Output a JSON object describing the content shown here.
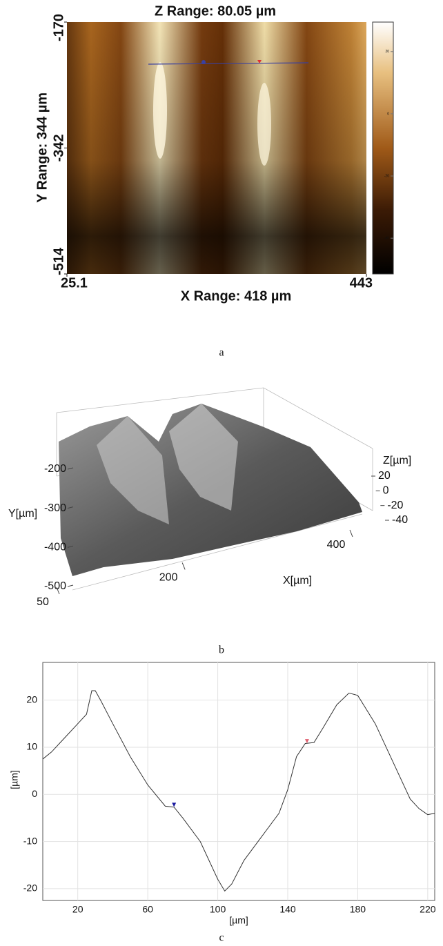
{
  "figure_labels": [
    "a",
    "b",
    "c"
  ],
  "chart_data": [
    {
      "type": "heatmap",
      "title": "Z Range: 80.05 µm",
      "xlabel": "X Range: 418 µm",
      "ylabel": "Y Range: 344 µm",
      "xlim": [
        25.1,
        443
      ],
      "xticks": [
        25.1,
        443
      ],
      "ylim": [
        -514,
        -170
      ],
      "yticks": [
        -170,
        -342,
        -514
      ],
      "zlim": [
        -51.5,
        29.5
      ],
      "zticks": [
        20,
        0,
        -20,
        -40
      ]
    },
    {
      "type": "surface3d",
      "xlabel": "X[µm]",
      "ylabel": "Y[µm]",
      "zlabel": "Z[µm]",
      "xlim": [
        50,
        400
      ],
      "xticks": [
        50,
        200,
        400
      ],
      "ylim": [
        -200,
        -500
      ],
      "yticks": [
        -200,
        -300,
        -400,
        -500
      ],
      "zlim": [
        -40,
        20
      ],
      "zticks": [
        20,
        0,
        -20,
        -40
      ]
    },
    {
      "type": "line",
      "xlabel": "[µm]",
      "ylabel": "[µm]",
      "xlim": [
        0,
        224
      ],
      "ylim": [
        -22.5,
        28
      ],
      "xticks": [
        20,
        60,
        100,
        140,
        180,
        220
      ],
      "yticks": [
        -20,
        -10,
        0,
        10,
        20
      ],
      "grid": true,
      "x": [
        0,
        5,
        10,
        15,
        20,
        25,
        28,
        30,
        33,
        40,
        50,
        60,
        70,
        75,
        80,
        90,
        100,
        104,
        108,
        115,
        125,
        135,
        140,
        145,
        150,
        155,
        160,
        168,
        175,
        180,
        190,
        200,
        210,
        215,
        220,
        224
      ],
      "series": [
        {
          "color": "#333333",
          "values": [
            7.5,
            9,
            11,
            13,
            15,
            17,
            22,
            22,
            20,
            15,
            8,
            2,
            -2.5,
            -2.7,
            -5,
            -10,
            -18,
            -20.5,
            -19,
            -14,
            -9,
            -4,
            1,
            8,
            10.8,
            11,
            14,
            19,
            21.5,
            21,
            15,
            7,
            -1,
            -3,
            -4.3,
            -4
          ]
        }
      ],
      "markers": [
        {
          "x": 75,
          "y": -2.5,
          "color": "#1a1aa0"
        },
        {
          "x": 151,
          "y": 11,
          "color": "#e06070"
        }
      ]
    }
  ]
}
